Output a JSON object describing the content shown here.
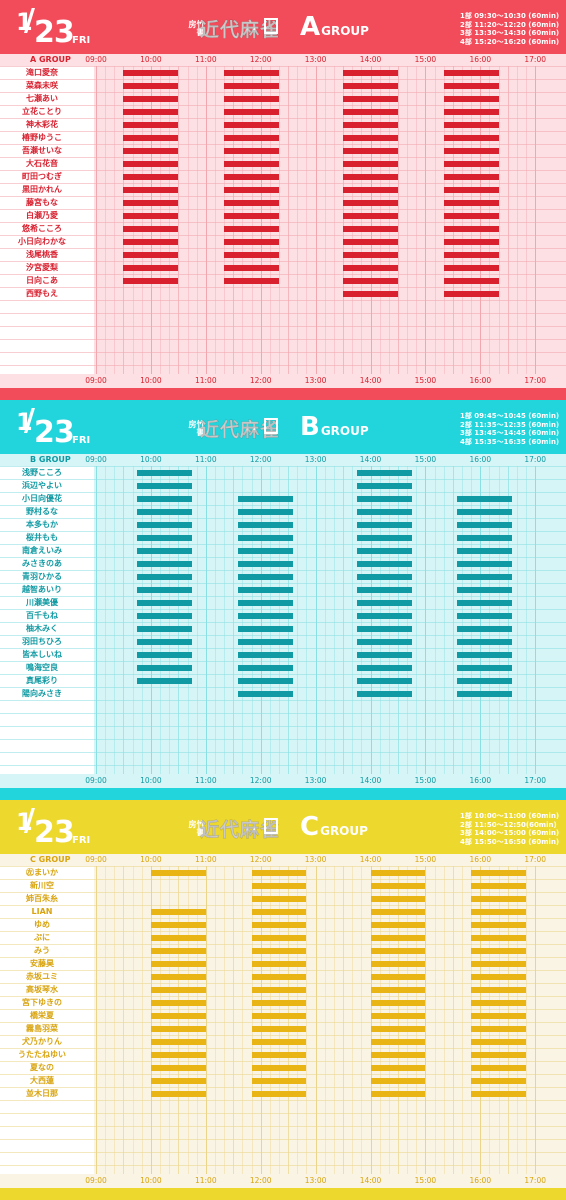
{
  "hours": [
    "09:00",
    "10:00",
    "11:00",
    "12:00",
    "13:00",
    "14:00",
    "15:00",
    "16:00",
    "17:00"
  ],
  "logo_text": "近代麻雀",
  "logo_kanji": "竹書房",
  "groups": [
    {
      "key": "A",
      "date_month": "1",
      "date_slash": "/",
      "date_day": "23",
      "date_weekday": "FRI",
      "group_letter": "A",
      "group_word": "GROUP",
      "corner_label": "A GROUP",
      "colors": {
        "accent": "#F24B5A",
        "light": "#FCE0E3",
        "grid": "#F2A6AE",
        "bar": "#D9202F",
        "text": "#D9202F"
      },
      "schedule": [
        "1部 09:30〜10:30 (60min)",
        "2部 11:20〜12:20 (60min)",
        "3部 13:30〜14:30 (60min)",
        "4部 15:20〜16:20 (60min)"
      ],
      "sessions": [
        [
          "09:30",
          "10:30"
        ],
        [
          "11:20",
          "12:20"
        ],
        [
          "13:30",
          "14:30"
        ],
        [
          "15:20",
          "16:20"
        ]
      ],
      "members": [
        {
          "name": "滝口愛奈",
          "slots": [
            1,
            1,
            1,
            1
          ]
        },
        {
          "name": "菜森未咲",
          "slots": [
            1,
            1,
            1,
            1
          ]
        },
        {
          "name": "七瀬あい",
          "slots": [
            1,
            1,
            1,
            1
          ]
        },
        {
          "name": "立花ことり",
          "slots": [
            1,
            1,
            1,
            1
          ]
        },
        {
          "name": "神木彩花",
          "slots": [
            1,
            1,
            1,
            1
          ]
        },
        {
          "name": "椿野ゆうこ",
          "slots": [
            1,
            1,
            1,
            1
          ]
        },
        {
          "name": "吾瀬せいな",
          "slots": [
            1,
            1,
            1,
            1
          ]
        },
        {
          "name": "大石花音",
          "slots": [
            1,
            1,
            1,
            1
          ]
        },
        {
          "name": "町田つむぎ",
          "slots": [
            1,
            1,
            1,
            1
          ]
        },
        {
          "name": "黒田かれん",
          "slots": [
            1,
            1,
            1,
            1
          ]
        },
        {
          "name": "藤宮もな",
          "slots": [
            1,
            1,
            1,
            1
          ]
        },
        {
          "name": "白瀬乃愛",
          "slots": [
            1,
            1,
            1,
            1
          ]
        },
        {
          "name": "悠希こころ",
          "slots": [
            1,
            1,
            1,
            1
          ]
        },
        {
          "name": "小日向わかな",
          "slots": [
            1,
            1,
            1,
            1
          ]
        },
        {
          "name": "浅尾桃香",
          "slots": [
            1,
            1,
            1,
            1
          ]
        },
        {
          "name": "汐宮愛梨",
          "slots": [
            1,
            1,
            1,
            1
          ]
        },
        {
          "name": "日向こあ",
          "slots": [
            1,
            1,
            1,
            1
          ]
        },
        {
          "name": "西野もえ",
          "slots": [
            0,
            0,
            1,
            1
          ]
        }
      ]
    },
    {
      "key": "B",
      "date_month": "1",
      "date_slash": "/",
      "date_day": "23",
      "date_weekday": "FRI",
      "group_letter": "B",
      "group_word": "GROUP",
      "corner_label": "B GROUP",
      "colors": {
        "accent": "#22D4DB",
        "light": "#D6F5F6",
        "grid": "#8ADFE3",
        "bar": "#109AA3",
        "text": "#0F9AA3"
      },
      "schedule": [
        "1部 09:45〜10:45 (60min)",
        "2部 11:35〜12:35 (60min)",
        "3部 13:45〜14:45 (60min)",
        "4部 15:35〜16:35 (60min)"
      ],
      "sessions": [
        [
          "09:45",
          "10:45"
        ],
        [
          "11:35",
          "12:35"
        ],
        [
          "13:45",
          "14:45"
        ],
        [
          "15:35",
          "16:35"
        ]
      ],
      "members": [
        {
          "name": "浅野こころ",
          "slots": [
            1,
            0,
            1,
            0
          ]
        },
        {
          "name": "浜辺やよい",
          "slots": [
            1,
            0,
            1,
            0
          ]
        },
        {
          "name": "小日向優花",
          "slots": [
            1,
            1,
            1,
            1
          ]
        },
        {
          "name": "野村るな",
          "slots": [
            1,
            1,
            1,
            1
          ]
        },
        {
          "name": "本多もか",
          "slots": [
            1,
            1,
            1,
            1
          ]
        },
        {
          "name": "桜井もも",
          "slots": [
            1,
            1,
            1,
            1
          ]
        },
        {
          "name": "南倉えいみ",
          "slots": [
            1,
            1,
            1,
            1
          ]
        },
        {
          "name": "みさきのあ",
          "slots": [
            1,
            1,
            1,
            1
          ]
        },
        {
          "name": "青羽ひかる",
          "slots": [
            1,
            1,
            1,
            1
          ]
        },
        {
          "name": "越智あいり",
          "slots": [
            1,
            1,
            1,
            1
          ]
        },
        {
          "name": "川瀬美優",
          "slots": [
            1,
            1,
            1,
            1
          ]
        },
        {
          "name": "百千もね",
          "slots": [
            1,
            1,
            1,
            1
          ]
        },
        {
          "name": "柚木みく",
          "slots": [
            1,
            1,
            1,
            1
          ]
        },
        {
          "name": "羽田ちひろ",
          "slots": [
            1,
            1,
            1,
            1
          ]
        },
        {
          "name": "皆本しいね",
          "slots": [
            1,
            1,
            1,
            1
          ]
        },
        {
          "name": "鳴海空良",
          "slots": [
            1,
            1,
            1,
            1
          ]
        },
        {
          "name": "真尾彩り",
          "slots": [
            1,
            1,
            1,
            1
          ]
        },
        {
          "name": "陽向みさき",
          "slots": [
            0,
            1,
            1,
            1
          ]
        }
      ]
    },
    {
      "key": "C",
      "date_month": "1",
      "date_slash": "/",
      "date_day": "23",
      "date_weekday": "FRI",
      "group_letter": "C",
      "group_word": "GROUP",
      "corner_label": "C GROUP",
      "colors": {
        "accent": "#EDD82E",
        "light": "#FAF4E4",
        "grid": "#EBD58A",
        "bar": "#E8B514",
        "text": "#D9A40F"
      },
      "schedule": [
        "1部 10:00〜11:00 (60min)",
        "2部 11:50〜12:50(60min)",
        "3部 14:00〜15:00 (60min)",
        "4部 15:50〜16:50 (60min)"
      ],
      "sessions": [
        [
          "10:00",
          "11:00"
        ],
        [
          "11:50",
          "12:50"
        ],
        [
          "14:00",
          "15:00"
        ],
        [
          "15:50",
          "16:50"
        ]
      ],
      "members": [
        {
          "name": "㊧まいか",
          "slots": [
            1,
            1,
            1,
            1
          ]
        },
        {
          "name": "新川空",
          "slots": [
            0,
            1,
            1,
            1
          ]
        },
        {
          "name": "姉百朱糸",
          "slots": [
            0,
            1,
            1,
            1
          ]
        },
        {
          "name": "LIAN",
          "slots": [
            1,
            1,
            1,
            1
          ]
        },
        {
          "name": "ゆめ",
          "slots": [
            1,
            1,
            1,
            1
          ]
        },
        {
          "name": "ぷに",
          "slots": [
            1,
            1,
            1,
            1
          ]
        },
        {
          "name": "みう",
          "slots": [
            1,
            1,
            1,
            1
          ]
        },
        {
          "name": "安藤昊",
          "slots": [
            1,
            1,
            1,
            1
          ]
        },
        {
          "name": "赤坂ユミ",
          "slots": [
            1,
            1,
            1,
            1
          ]
        },
        {
          "name": "高坂琴水",
          "slots": [
            1,
            1,
            1,
            1
          ]
        },
        {
          "name": "宮下ゆきの",
          "slots": [
            1,
            1,
            1,
            1
          ]
        },
        {
          "name": "橋栄夏",
          "slots": [
            1,
            1,
            1,
            1
          ]
        },
        {
          "name": "霧島羽菜",
          "slots": [
            1,
            1,
            1,
            1
          ]
        },
        {
          "name": "犬乃かりん",
          "slots": [
            1,
            1,
            1,
            1
          ]
        },
        {
          "name": "うたたねゆい",
          "slots": [
            1,
            1,
            1,
            1
          ]
        },
        {
          "name": "夏なの",
          "slots": [
            1,
            1,
            1,
            1
          ]
        },
        {
          "name": "大西蓮",
          "slots": [
            1,
            1,
            1,
            1
          ]
        },
        {
          "name": "並木日那",
          "slots": [
            1,
            1,
            1,
            1
          ]
        }
      ]
    }
  ]
}
